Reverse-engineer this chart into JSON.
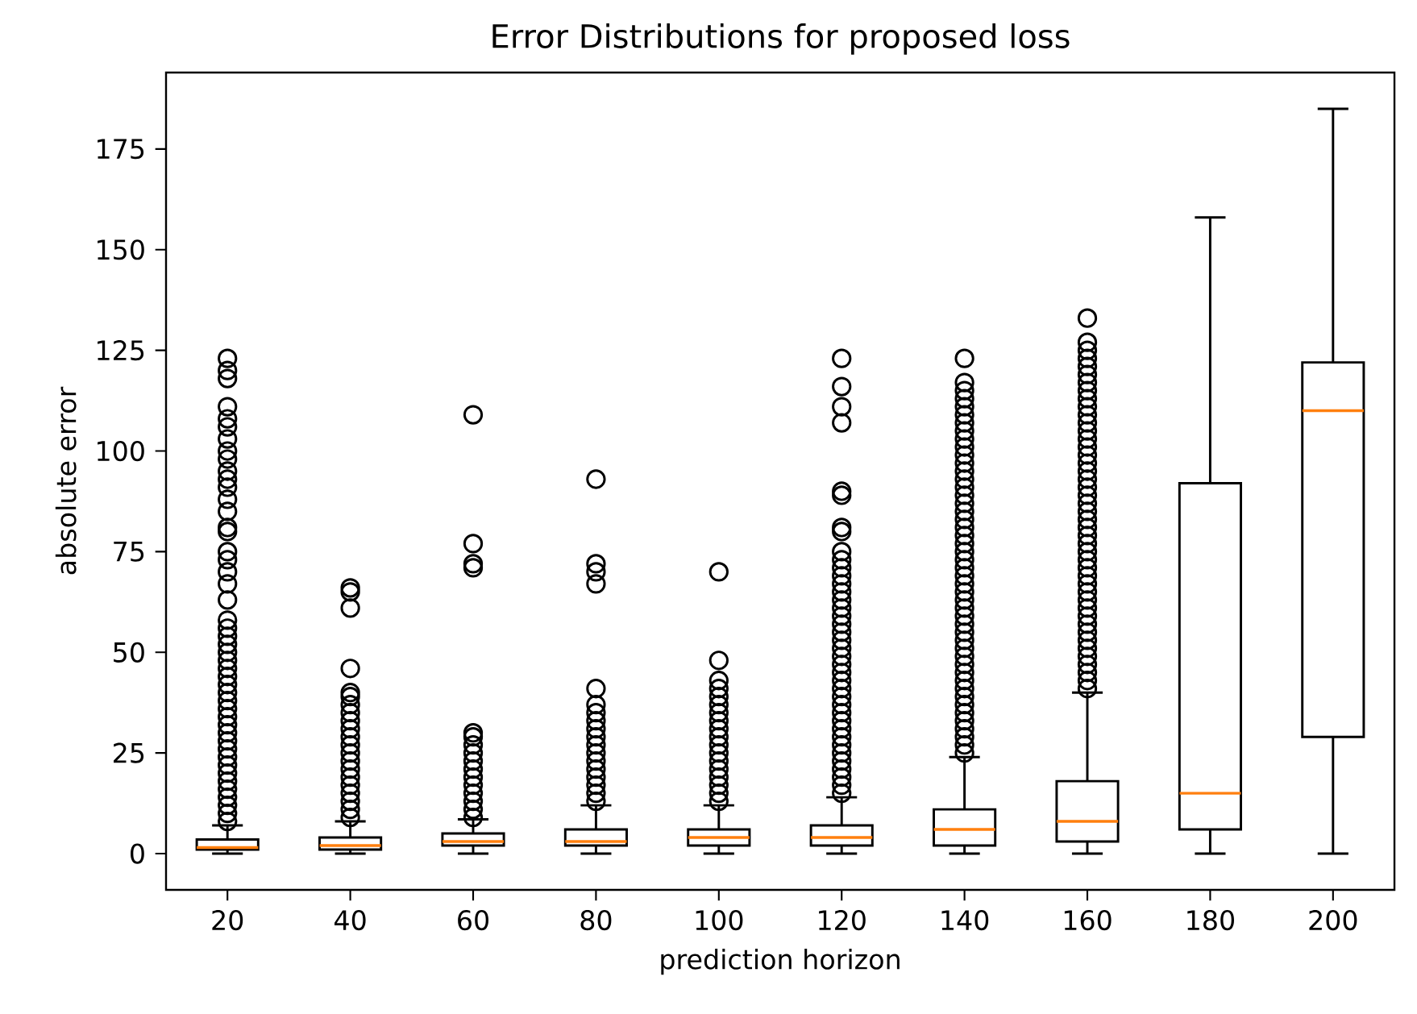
{
  "chart_data": {
    "type": "box",
    "title": "Error Distributions for proposed loss",
    "xlabel": "prediction horizon",
    "ylabel": "absolute error",
    "categories": [
      "20",
      "40",
      "60",
      "80",
      "100",
      "120",
      "140",
      "160",
      "180",
      "200"
    ],
    "ylim": [
      -9,
      194
    ],
    "yticks": [
      0,
      25,
      50,
      75,
      100,
      125,
      150,
      175
    ],
    "marker": "circle",
    "boxes": [
      {
        "low": 0,
        "q1": 1,
        "median": 1.5,
        "q3": 3.5,
        "high": 7,
        "outliers": [
          8,
          10,
          12,
          14,
          16,
          18,
          20,
          22,
          24,
          26,
          28,
          30,
          32,
          34,
          36,
          38,
          40,
          42,
          44,
          46,
          48,
          50,
          52,
          54,
          56,
          58,
          63,
          67,
          70,
          73,
          75,
          80,
          81,
          85,
          88,
          91,
          93,
          95,
          98,
          100,
          103,
          106,
          108,
          111,
          118,
          120,
          123
        ]
      },
      {
        "low": 0,
        "q1": 1,
        "median": 2,
        "q3": 4,
        "high": 8,
        "outliers": [
          9,
          11,
          13,
          15,
          17,
          19,
          21,
          23,
          25,
          27,
          29,
          31,
          33,
          35,
          37,
          39,
          40,
          46,
          61,
          65,
          66
        ]
      },
      {
        "low": 0,
        "q1": 2,
        "median": 3,
        "q3": 5,
        "high": 8.5,
        "outliers": [
          9,
          11,
          13,
          15,
          17,
          19,
          21,
          23,
          25,
          27,
          29,
          30,
          71,
          72,
          77,
          109
        ]
      },
      {
        "low": 0,
        "q1": 2,
        "median": 3,
        "q3": 6,
        "high": 12,
        "outliers": [
          13,
          15,
          17,
          19,
          21,
          23,
          25,
          27,
          29,
          31,
          33,
          35,
          37,
          41,
          67,
          70,
          72,
          93
        ]
      },
      {
        "low": 0,
        "q1": 2,
        "median": 4,
        "q3": 6,
        "high": 12,
        "outliers": [
          13,
          15,
          17,
          19,
          21,
          23,
          25,
          27,
          29,
          31,
          33,
          35,
          37,
          39,
          41,
          43,
          48,
          70
        ]
      },
      {
        "low": 0,
        "q1": 2,
        "median": 4,
        "q3": 7,
        "high": 14,
        "outliers": [
          15,
          17,
          19,
          21,
          23,
          25,
          27,
          29,
          31,
          33,
          35,
          37,
          39,
          41,
          43,
          45,
          47,
          49,
          51,
          53,
          55,
          57,
          59,
          61,
          63,
          65,
          67,
          69,
          71,
          73,
          75,
          80,
          81,
          89,
          90,
          107,
          111,
          116,
          123
        ]
      },
      {
        "low": 0,
        "q1": 2,
        "median": 6,
        "q3": 11,
        "high": 24,
        "outliers": [
          25,
          27,
          29,
          31,
          33,
          35,
          37,
          39,
          41,
          43,
          45,
          47,
          49,
          51,
          53,
          55,
          57,
          59,
          61,
          63,
          65,
          67,
          69,
          71,
          73,
          75,
          77,
          79,
          81,
          83,
          85,
          87,
          89,
          91,
          93,
          95,
          97,
          99,
          101,
          103,
          105,
          107,
          109,
          111,
          113,
          115,
          117,
          123
        ]
      },
      {
        "low": 0,
        "q1": 3,
        "median": 8,
        "q3": 18,
        "high": 40,
        "outliers": [
          41,
          43,
          45,
          47,
          49,
          51,
          53,
          55,
          57,
          59,
          61,
          63,
          65,
          67,
          69,
          71,
          73,
          75,
          77,
          79,
          81,
          83,
          85,
          87,
          89,
          91,
          93,
          95,
          97,
          99,
          101,
          103,
          105,
          107,
          109,
          111,
          113,
          115,
          117,
          119,
          121,
          123,
          125,
          127,
          133
        ]
      },
      {
        "low": 0,
        "q1": 6,
        "median": 15,
        "q3": 92,
        "high": 158
      },
      {
        "low": 0,
        "q1": 29,
        "median": 110,
        "q3": 122,
        "high": 185
      }
    ]
  }
}
